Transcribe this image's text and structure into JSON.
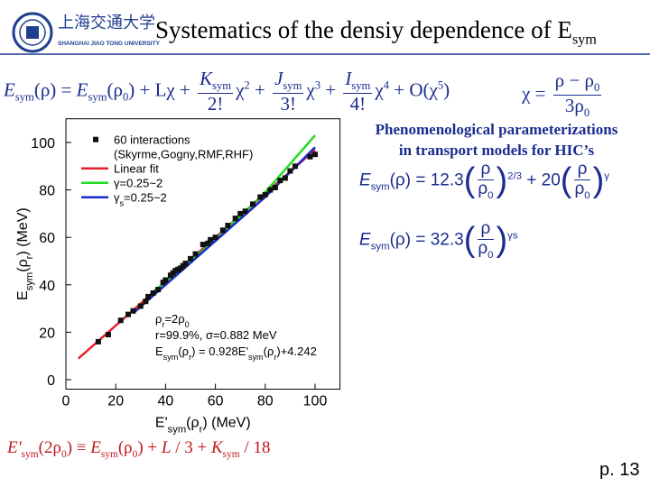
{
  "logo": {
    "name": "上海交通大学",
    "name_en": "SHANGHAI JIAO TONG UNIVERSITY"
  },
  "title": [
    [
      "Systematics of the densiy dependence of E",
      ""
    ],
    [
      "sym",
      "sub"
    ]
  ],
  "formula_expansion": [
    [
      "E",
      "i"
    ],
    [
      "sym",
      "sub"
    ],
    [
      "(ρ)  =  ",
      ""
    ],
    [
      "E",
      "i"
    ],
    [
      "sym",
      "sub"
    ],
    [
      "(ρ",
      ""
    ],
    [
      "0",
      "sub"
    ],
    [
      ") + Lχ + ",
      ""
    ],
    {
      "num": [
        [
          "K",
          "i"
        ],
        [
          "sym",
          "sub"
        ]
      ],
      "den": [
        [
          "2!",
          ""
        ]
      ]
    },
    [
      "χ",
      ""
    ],
    [
      "2",
      "sup"
    ],
    [
      " + ",
      ""
    ],
    {
      "num": [
        [
          "J",
          "i"
        ],
        [
          "sym",
          "sub"
        ]
      ],
      "den": [
        [
          "3!",
          ""
        ]
      ]
    },
    [
      "χ",
      ""
    ],
    [
      "3",
      "sup"
    ],
    [
      " + ",
      ""
    ],
    {
      "num": [
        [
          "I",
          "i"
        ],
        [
          "sym",
          "sub"
        ]
      ],
      "den": [
        [
          "4!",
          ""
        ]
      ]
    },
    [
      "χ",
      ""
    ],
    [
      "4",
      "sup"
    ],
    [
      " + O(χ",
      ""
    ],
    [
      "5",
      "sup"
    ],
    [
      ")",
      ""
    ]
  ],
  "formula_chi": [
    [
      "χ = ",
      ""
    ],
    {
      "num": [
        [
          "ρ − ρ",
          ""
        ],
        [
          "0",
          "sub"
        ]
      ],
      "den": [
        [
          "3ρ",
          ""
        ],
        [
          "0",
          "sub"
        ]
      ]
    }
  ],
  "side_heading": [
    "Phenomenological parameterizations",
    "in transport models for HIC’s"
  ],
  "formula_gamma": [
    [
      "E",
      "i"
    ],
    [
      "sym",
      "sub"
    ],
    [
      "(ρ) = 12.3",
      ""
    ],
    [
      "(",
      "big"
    ],
    {
      "num": [
        [
          "ρ",
          ""
        ]
      ],
      "den": [
        [
          "ρ",
          ""
        ],
        [
          "0",
          "sub"
        ]
      ]
    },
    [
      ")",
      "big"
    ],
    [
      "2/3",
      "sup"
    ],
    [
      " + 20",
      ""
    ],
    [
      "(",
      "big"
    ],
    {
      "num": [
        [
          "ρ",
          ""
        ]
      ],
      "den": [
        [
          "ρ",
          ""
        ],
        [
          "0",
          "sub"
        ]
      ]
    },
    [
      ")",
      "big"
    ],
    [
      "γ",
      "sup"
    ]
  ],
  "formula_gamma_s": [
    [
      "E",
      "i"
    ],
    [
      "sym",
      "sub"
    ],
    [
      "(ρ) = 32.3",
      ""
    ],
    [
      "(",
      "big"
    ],
    {
      "num": [
        [
          "ρ",
          ""
        ]
      ],
      "den": [
        [
          "ρ",
          ""
        ],
        [
          "0",
          "sub"
        ]
      ]
    },
    [
      ")",
      "big"
    ],
    [
      "γs",
      "sup"
    ]
  ],
  "formula_bottom": [
    [
      "E'",
      "i"
    ],
    [
      "sym",
      "sub"
    ],
    [
      "(2ρ",
      ""
    ],
    [
      "0",
      "sub"
    ],
    [
      ") ≡ ",
      ""
    ],
    [
      "E",
      "i"
    ],
    [
      "sym",
      "sub"
    ],
    [
      "(ρ",
      ""
    ],
    [
      "0",
      "sub"
    ],
    [
      ") + ",
      ""
    ],
    [
      "L",
      "i"
    ],
    [
      " / 3 + ",
      ""
    ],
    [
      "K",
      "i"
    ],
    [
      "sym",
      "sub"
    ],
    [
      " / 18",
      ""
    ]
  ],
  "page_number": "p. 13",
  "chart_data": {
    "type": "scatter",
    "x_label": [
      [
        "E'",
        ""
      ],
      [
        "sym",
        "sub"
      ],
      [
        "(ρ",
        ""
      ],
      [
        "r",
        "sub"
      ],
      [
        ") (MeV)",
        ""
      ]
    ],
    "y_label": [
      [
        "E",
        ""
      ],
      [
        "sym",
        "sub"
      ],
      [
        "(ρ",
        ""
      ],
      [
        "r",
        "sub"
      ],
      [
        ") (MeV)",
        ""
      ]
    ],
    "xlim": [
      0,
      110
    ],
    "ylim": [
      -4,
      110
    ],
    "xticks": [
      0,
      20,
      40,
      60,
      80,
      100
    ],
    "yticks": [
      0,
      20,
      40,
      60,
      80,
      100
    ],
    "legend_subtitle": "(Skyrme,Gogny,RMF,RHF)",
    "series": [
      {
        "name": "60 interactions",
        "kind": "scatter",
        "color": "#111111",
        "x": [
          13,
          17,
          22,
          25,
          27,
          30,
          32,
          33,
          35,
          37,
          39,
          40,
          42,
          43,
          44,
          45,
          46,
          47,
          48,
          50,
          52,
          55,
          57,
          58,
          60,
          63,
          65,
          68,
          70,
          72,
          75,
          78,
          80,
          82,
          84,
          86,
          88,
          90,
          92,
          98,
          100
        ],
        "y": [
          16,
          19,
          25,
          27.5,
          29,
          31,
          33,
          35,
          36.5,
          38,
          41,
          42,
          44,
          45,
          46,
          46.5,
          47,
          48,
          49,
          51,
          53,
          57,
          57.5,
          59,
          60,
          63,
          65,
          68,
          70,
          71,
          74,
          77,
          78,
          80,
          81,
          84,
          85,
          88,
          90,
          94,
          95
        ]
      },
      {
        "name": "Linear fit",
        "kind": "line",
        "color": "#e8202a",
        "x": [
          5,
          100
        ],
        "y": [
          8.9,
          97.0
        ]
      },
      {
        "name": [
          [
            "γ",
            ""
          ],
          [
            "=0.25~2",
            ""
          ]
        ],
        "kind": "line",
        "color": "#22dd22",
        "x": [
          35,
          50,
          60,
          70,
          80,
          90,
          100
        ],
        "y": [
          37,
          50,
          59,
          69,
          79,
          91,
          103
        ]
      },
      {
        "name": [
          [
            "γ",
            ""
          ],
          [
            "s",
            "sub"
          ],
          [
            "=0.25~2",
            ""
          ]
        ],
        "kind": "line",
        "color": "#1a2ccc",
        "x": [
          27,
          40,
          60,
          80,
          100
        ],
        "y": [
          28,
          40,
          58.5,
          77,
          98
        ]
      }
    ],
    "annotations": [
      [
        [
          "ρ",
          ""
        ],
        [
          "r",
          "sub"
        ],
        [
          "=2ρ",
          ""
        ],
        [
          "0",
          "sub"
        ]
      ],
      [
        [
          "r=99.9%, σ=0.882 MeV",
          ""
        ]
      ],
      [
        [
          "E",
          ""
        ],
        [
          "sym",
          "sub"
        ],
        [
          "(ρ",
          ""
        ],
        [
          "r",
          "sub"
        ],
        [
          ") = 0.928E'",
          ""
        ],
        [
          "sym",
          "sub"
        ],
        [
          "(ρ",
          ""
        ],
        [
          "r",
          "sub"
        ],
        [
          ")+4.242",
          ""
        ]
      ]
    ]
  }
}
